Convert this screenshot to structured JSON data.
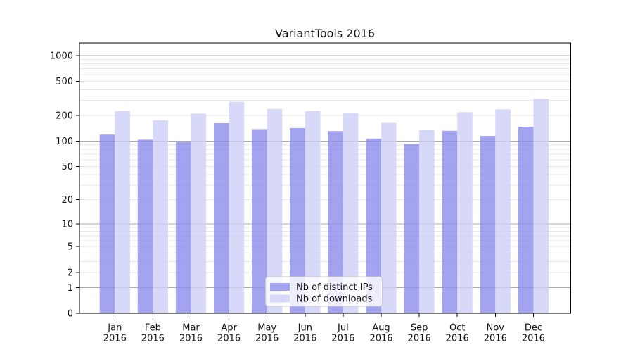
{
  "chart_data": {
    "type": "bar",
    "title": "VariantTools 2016",
    "categories": [
      "Jan 2016",
      "Feb 2016",
      "Mar 2016",
      "Apr 2016",
      "May 2016",
      "Jun 2016",
      "Jul 2016",
      "Aug 2016",
      "Sep 2016",
      "Oct 2016",
      "Nov 2016",
      "Dec 2016"
    ],
    "series": [
      {
        "name": "Nb of distinct IPs",
        "color": "#8c8cec",
        "values": [
          119,
          104,
          98,
          162,
          138,
          142,
          131,
          107,
          92,
          132,
          115,
          147
        ]
      },
      {
        "name": "Nb of downloads",
        "color": "#cecef6",
        "values": [
          225,
          175,
          210,
          288,
          238,
          225,
          214,
          163,
          135,
          218,
          235,
          313
        ]
      }
    ],
    "bar_alpha": 0.8,
    "xlabel": "",
    "ylabel": "",
    "yscale": "log1p",
    "ylim": [
      0,
      1400
    ],
    "yticks": [
      0,
      1,
      2,
      5,
      10,
      20,
      50,
      100,
      200,
      500,
      1000
    ],
    "grid": {
      "axis": "y",
      "minor_color": "#e7e7e7",
      "major_color": "#ababab",
      "major_at": [
        1,
        10,
        100,
        1000
      ]
    },
    "legend": {
      "position": "lower center"
    }
  },
  "colors": {
    "background": "#ffffff",
    "spine": "#000000",
    "tick": "#000000",
    "text": "#111111",
    "legend_border": "#cccccc"
  }
}
